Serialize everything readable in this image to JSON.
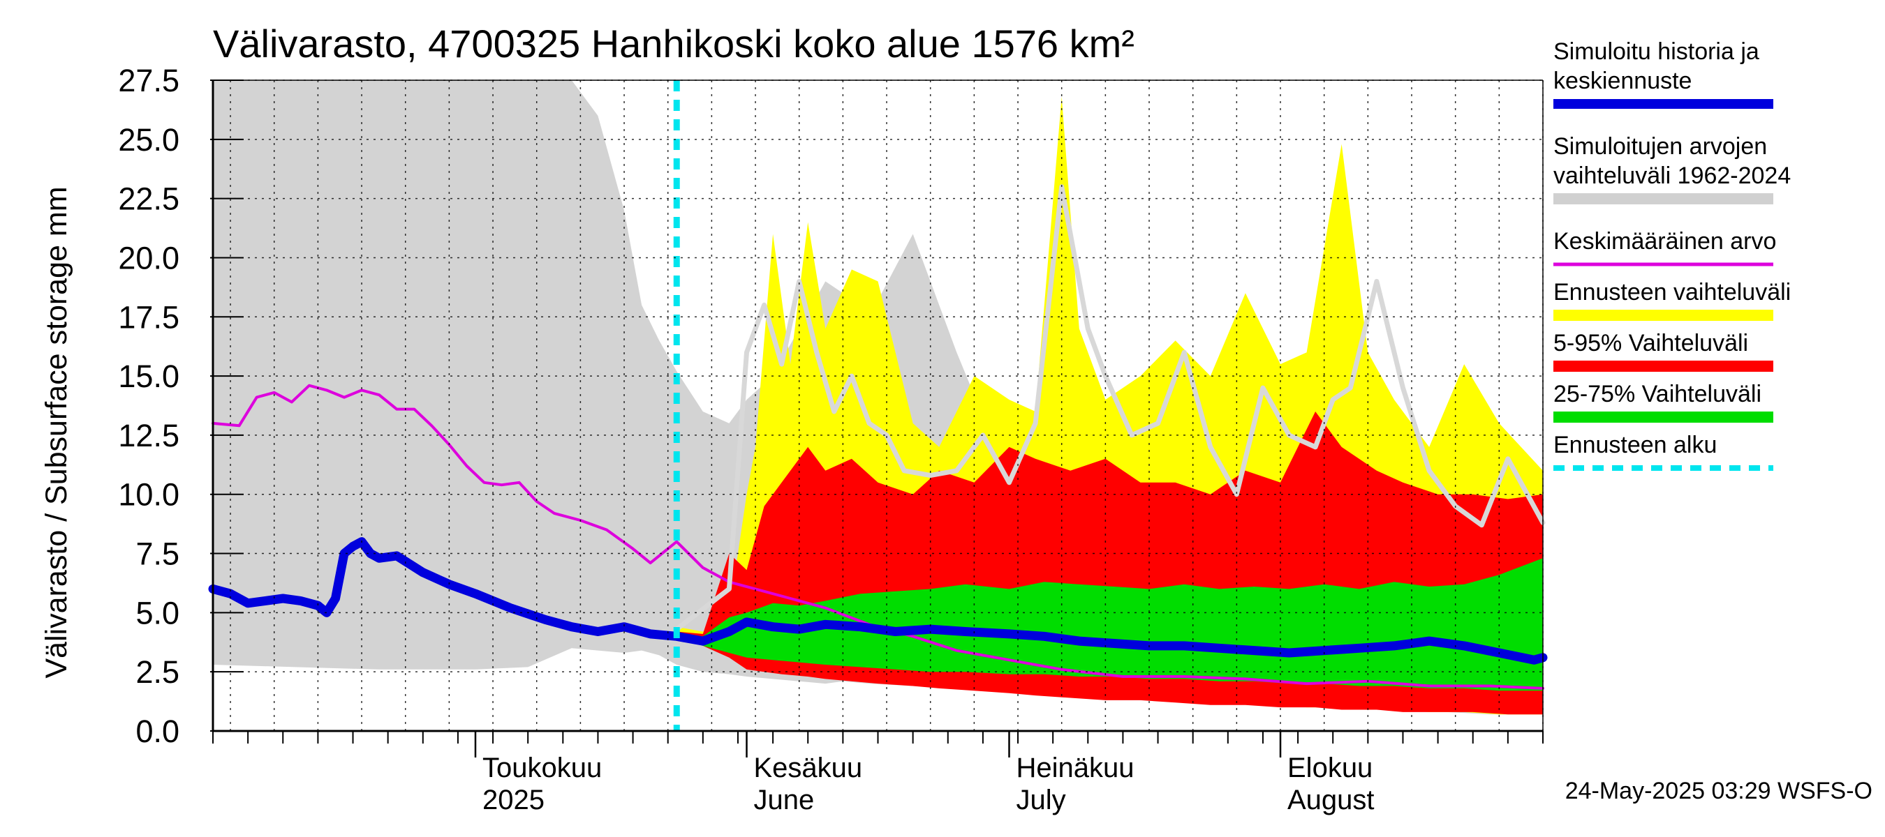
{
  "chart_data": {
    "type": "area",
    "title": "Välivarasto, 4700325 Hanhikoski koko alue 1576 km²",
    "ylabel": "Välivarasto / Subsurface storage  mm",
    "ylim": [
      0,
      27.5
    ],
    "yticks": [
      "0.0",
      "2.5",
      "5.0",
      "7.5",
      "10.0",
      "12.5",
      "15.0",
      "17.5",
      "20.0",
      "22.5",
      "25.0",
      "27.5"
    ],
    "x_start": "2025-04-01",
    "x_end": "2025-08-31",
    "forecast_start": "2025-05-24",
    "months": [
      {
        "date": "2025-05-01",
        "fi": "Toukokuu",
        "en": "2025"
      },
      {
        "date": "2025-06-01",
        "fi": "Kesäkuu",
        "en": "June"
      },
      {
        "date": "2025-07-01",
        "fi": "Heinäkuu",
        "en": "July"
      },
      {
        "date": "2025-08-01",
        "fi": "Elokuu",
        "en": "August"
      }
    ],
    "grid": true,
    "legend_position": "right",
    "legend": [
      {
        "label": "Simuloitu historia ja keskiennuste",
        "color": "#0000dd",
        "style": "thick"
      },
      {
        "label": "Simuloitujen arvojen vaihteluväli 1962-2024",
        "color": "#d0d0d0",
        "style": "band"
      },
      {
        "label": "Keskimääräinen arvo",
        "color": "#dd00dd",
        "style": "thin"
      },
      {
        "label": "Ennusteen vaihteluväli",
        "color": "#ffff00",
        "style": "band"
      },
      {
        "label": "5-95% Vaihteluväli",
        "color": "#ff0000",
        "style": "band"
      },
      {
        "label": "25-75% Vaihteluväli",
        "color": "#00dd00",
        "style": "band"
      },
      {
        "label": "Ennusteen alku",
        "color": "#00e5ee",
        "style": "dashed"
      }
    ],
    "series": {
      "history_range": {
        "x": [
          "2025-04-01",
          "2025-04-20",
          "2025-05-01",
          "2025-05-07",
          "2025-05-12",
          "2025-05-15",
          "2025-05-18",
          "2025-05-20",
          "2025-05-22",
          "2025-05-24",
          "2025-05-27",
          "2025-05-30",
          "2025-06-01",
          "2025-06-04",
          "2025-06-07",
          "2025-06-10",
          "2025-06-12",
          "2025-06-15",
          "2025-06-20",
          "2025-06-25",
          "2025-06-30",
          "2025-07-05",
          "2025-07-10",
          "2025-07-15",
          "2025-07-20",
          "2025-07-25",
          "2025-07-31",
          "2025-08-05",
          "2025-08-10",
          "2025-08-15",
          "2025-08-20",
          "2025-08-25",
          "2025-08-31"
        ],
        "low": [
          2.8,
          2.6,
          2.6,
          2.7,
          3.5,
          3.4,
          3.3,
          3.4,
          3.2,
          2.8,
          2.5,
          2.4,
          2.3,
          2.2,
          2.1,
          2.0,
          2.1,
          2.0,
          1.9,
          1.8,
          1.7,
          1.6,
          1.5,
          1.4,
          1.3,
          1.2,
          1.1,
          1.0,
          0.9,
          0.9,
          0.8,
          0.7,
          0.7
        ],
        "high": [
          27.5,
          27.5,
          27.5,
          27.5,
          27.5,
          26.0,
          22.0,
          18.0,
          16.5,
          15.2,
          13.5,
          13.0,
          14.0,
          15.0,
          17.0,
          19.0,
          18.5,
          17.5,
          21.0,
          16.0,
          11.5,
          10.8,
          12.0,
          11.0,
          10.5,
          11.5,
          16.0,
          11.0,
          13.0,
          11.0,
          12.0,
          9.5,
          8.9
        ]
      },
      "forecast_range": {
        "x": [
          "2025-05-24",
          "2025-05-27",
          "2025-05-30",
          "2025-06-01",
          "2025-06-02",
          "2025-06-04",
          "2025-06-06",
          "2025-06-08",
          "2025-06-10",
          "2025-06-13",
          "2025-06-16",
          "2025-06-20",
          "2025-06-23",
          "2025-06-27",
          "2025-07-01",
          "2025-07-04",
          "2025-07-07",
          "2025-07-09",
          "2025-07-12",
          "2025-07-16",
          "2025-07-20",
          "2025-07-24",
          "2025-07-28",
          "2025-08-01",
          "2025-08-04",
          "2025-08-08",
          "2025-08-11",
          "2025-08-14",
          "2025-08-18",
          "2025-08-22",
          "2025-08-26",
          "2025-08-31"
        ],
        "low": [
          4.2,
          3.9,
          3.3,
          2.8,
          2.7,
          2.6,
          2.5,
          2.4,
          2.3,
          2.3,
          2.2,
          2.1,
          2.0,
          1.9,
          1.8,
          1.7,
          1.6,
          1.5,
          1.4,
          1.4,
          1.3,
          1.2,
          1.2,
          1.1,
          1.0,
          1.0,
          0.9,
          0.9,
          0.8,
          0.8,
          0.7,
          0.7
        ],
        "high": [
          4.4,
          4.2,
          5.0,
          10.0,
          12.0,
          21.0,
          15.5,
          21.5,
          17.0,
          19.5,
          19.0,
          13.0,
          12.0,
          15.0,
          14.0,
          13.5,
          26.8,
          17.0,
          14.0,
          15.0,
          16.5,
          15.0,
          18.5,
          15.5,
          16.0,
          24.8,
          16.0,
          14.0,
          12.0,
          15.5,
          13.0,
          11.0
        ]
      },
      "p5_95": {
        "x": [
          "2025-05-24",
          "2025-05-27",
          "2025-05-30",
          "2025-06-01",
          "2025-06-03",
          "2025-06-05",
          "2025-06-08",
          "2025-06-10",
          "2025-06-13",
          "2025-06-16",
          "2025-06-20",
          "2025-06-23",
          "2025-06-27",
          "2025-07-01",
          "2025-07-04",
          "2025-07-08",
          "2025-07-12",
          "2025-07-16",
          "2025-07-20",
          "2025-07-24",
          "2025-07-28",
          "2025-08-01",
          "2025-08-05",
          "2025-08-08",
          "2025-08-12",
          "2025-08-15",
          "2025-08-19",
          "2025-08-23",
          "2025-08-27",
          "2025-08-31"
        ],
        "low": [
          4.0,
          3.6,
          3.1,
          2.6,
          2.5,
          2.4,
          2.3,
          2.2,
          2.1,
          2.0,
          1.9,
          1.8,
          1.7,
          1.6,
          1.5,
          1.4,
          1.3,
          1.3,
          1.2,
          1.1,
          1.1,
          1.0,
          1.0,
          0.9,
          0.9,
          0.8,
          0.8,
          0.8,
          0.7,
          0.7
        ],
        "high": [
          4.2,
          4.1,
          7.5,
          6.8,
          9.5,
          10.5,
          12.0,
          11.0,
          11.5,
          10.5,
          10.0,
          11.0,
          10.5,
          12.0,
          11.5,
          11.0,
          11.5,
          10.5,
          10.5,
          10.0,
          11.0,
          10.5,
          13.5,
          12.0,
          11.0,
          10.5,
          10.0,
          10.0,
          9.8,
          10.0
        ]
      },
      "p25_75": {
        "x": [
          "2025-05-24",
          "2025-05-27",
          "2025-05-30",
          "2025-06-01",
          "2025-06-04",
          "2025-06-07",
          "2025-06-10",
          "2025-06-14",
          "2025-06-18",
          "2025-06-22",
          "2025-06-26",
          "2025-07-01",
          "2025-07-05",
          "2025-07-09",
          "2025-07-13",
          "2025-07-17",
          "2025-07-21",
          "2025-07-25",
          "2025-07-29",
          "2025-08-02",
          "2025-08-06",
          "2025-08-10",
          "2025-08-14",
          "2025-08-18",
          "2025-08-22",
          "2025-08-26",
          "2025-08-31"
        ],
        "low": [
          3.9,
          3.6,
          3.3,
          3.1,
          3.0,
          2.9,
          2.8,
          2.7,
          2.6,
          2.5,
          2.5,
          2.4,
          2.4,
          2.3,
          2.3,
          2.2,
          2.2,
          2.1,
          2.1,
          2.0,
          2.0,
          1.9,
          1.9,
          1.8,
          1.8,
          1.7,
          1.7
        ],
        "high": [
          4.1,
          4.0,
          4.8,
          5.0,
          5.4,
          5.3,
          5.5,
          5.8,
          5.9,
          6.0,
          6.2,
          6.0,
          6.3,
          6.2,
          6.1,
          6.0,
          6.2,
          6.0,
          6.1,
          6.0,
          6.2,
          6.0,
          6.3,
          6.1,
          6.2,
          6.6,
          7.3
        ]
      },
      "mean": {
        "x": [
          "2025-04-01",
          "2025-04-04",
          "2025-04-06",
          "2025-04-08",
          "2025-04-10",
          "2025-04-12",
          "2025-04-14",
          "2025-04-16",
          "2025-04-18",
          "2025-04-20",
          "2025-04-22",
          "2025-04-24",
          "2025-04-26",
          "2025-04-28",
          "2025-04-30",
          "2025-05-02",
          "2025-05-04",
          "2025-05-06",
          "2025-05-08",
          "2025-05-10",
          "2025-05-13",
          "2025-05-16",
          "2025-05-19",
          "2025-05-21",
          "2025-05-24",
          "2025-05-27",
          "2025-05-30",
          "2025-06-03",
          "2025-06-06",
          "2025-06-10",
          "2025-06-15",
          "2025-06-20",
          "2025-06-25",
          "2025-07-01",
          "2025-07-07",
          "2025-07-14",
          "2025-07-21",
          "2025-07-28",
          "2025-08-04",
          "2025-08-11",
          "2025-08-18",
          "2025-08-25",
          "2025-08-31"
        ],
        "values": [
          13.0,
          12.9,
          14.1,
          14.3,
          13.9,
          14.6,
          14.4,
          14.1,
          14.4,
          14.2,
          13.6,
          13.6,
          12.9,
          12.1,
          11.2,
          10.5,
          10.4,
          10.5,
          9.7,
          9.2,
          8.9,
          8.5,
          7.7,
          7.1,
          8.0,
          6.9,
          6.3,
          5.9,
          5.6,
          5.2,
          4.5,
          4.0,
          3.4,
          3.0,
          2.6,
          2.3,
          2.3,
          2.2,
          2.0,
          2.1,
          1.9,
          1.9,
          1.8
        ]
      },
      "median": {
        "x": [
          "2025-05-24",
          "2025-05-30",
          "2025-06-01",
          "2025-06-03",
          "2025-06-05",
          "2025-06-07",
          "2025-06-09",
          "2025-06-11",
          "2025-06-13",
          "2025-06-15",
          "2025-06-17",
          "2025-06-19",
          "2025-06-22",
          "2025-06-25",
          "2025-06-28",
          "2025-07-01",
          "2025-07-04",
          "2025-07-07",
          "2025-07-10",
          "2025-07-12",
          "2025-07-15",
          "2025-07-18",
          "2025-07-21",
          "2025-07-24",
          "2025-07-27",
          "2025-07-30",
          "2025-08-02",
          "2025-08-05",
          "2025-08-07",
          "2025-08-09",
          "2025-08-12",
          "2025-08-15",
          "2025-08-18",
          "2025-08-21",
          "2025-08-24",
          "2025-08-27",
          "2025-08-31"
        ],
        "values": [
          4.3,
          6.0,
          16.0,
          18.0,
          15.5,
          19.0,
          16.0,
          13.5,
          15.0,
          13.0,
          12.5,
          11.0,
          10.8,
          11.0,
          12.5,
          10.5,
          13.0,
          23.0,
          17.0,
          15.0,
          12.5,
          13.0,
          16.0,
          12.0,
          10.0,
          14.5,
          12.5,
          12.0,
          14.0,
          14.5,
          19.0,
          14.5,
          11.0,
          9.5,
          8.7,
          11.5,
          8.8
        ]
      },
      "simulated": {
        "x": [
          "2025-04-01",
          "2025-04-03",
          "2025-04-05",
          "2025-04-07",
          "2025-04-09",
          "2025-04-11",
          "2025-04-13",
          "2025-04-14",
          "2025-04-15",
          "2025-04-16",
          "2025-04-17",
          "2025-04-18",
          "2025-04-19",
          "2025-04-20",
          "2025-04-22",
          "2025-04-25",
          "2025-04-28",
          "2025-05-01",
          "2025-05-05",
          "2025-05-09",
          "2025-05-12",
          "2025-05-15",
          "2025-05-18",
          "2025-05-21",
          "2025-05-24",
          "2025-05-27",
          "2025-05-30",
          "2025-06-01",
          "2025-06-04",
          "2025-06-07",
          "2025-06-10",
          "2025-06-14",
          "2025-06-18",
          "2025-06-22",
          "2025-06-26",
          "2025-07-01",
          "2025-07-05",
          "2025-07-09",
          "2025-07-13",
          "2025-07-17",
          "2025-07-21",
          "2025-07-25",
          "2025-07-29",
          "2025-08-02",
          "2025-08-06",
          "2025-08-10",
          "2025-08-14",
          "2025-08-18",
          "2025-08-22",
          "2025-08-26",
          "2025-08-30",
          "2025-08-31"
        ],
        "values": [
          6.0,
          5.8,
          5.4,
          5.5,
          5.6,
          5.5,
          5.3,
          5.0,
          5.6,
          7.5,
          7.8,
          8.0,
          7.5,
          7.3,
          7.4,
          6.7,
          6.2,
          5.8,
          5.2,
          4.7,
          4.4,
          4.2,
          4.4,
          4.1,
          4.0,
          3.8,
          4.2,
          4.6,
          4.4,
          4.3,
          4.5,
          4.4,
          4.2,
          4.3,
          4.2,
          4.1,
          4.0,
          3.8,
          3.7,
          3.6,
          3.6,
          3.5,
          3.4,
          3.3,
          3.4,
          3.5,
          3.6,
          3.8,
          3.6,
          3.3,
          3.0,
          3.1
        ]
      }
    }
  },
  "footer": "24-May-2025 03:29 WSFS-O"
}
